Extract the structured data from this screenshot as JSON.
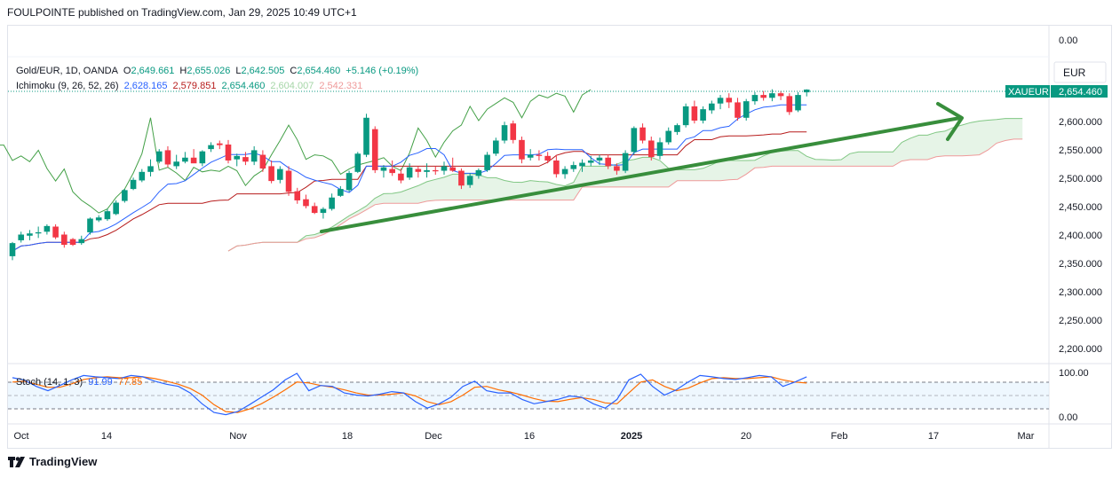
{
  "header": {
    "published": "FOULPOINTE published on TradingView.com, Jan 29, 2025 10:49 UTC+1"
  },
  "legend": {
    "symbol_line": {
      "symbol": "Gold/EUR, 1D, OANDA",
      "o_label": "O",
      "o": "2,649.661",
      "h_label": "H",
      "h": "2,655.026",
      "l_label": "L",
      "l": "2,642.505",
      "c_label": "C",
      "c": "2,654.460",
      "change": "+5.146 (+0.19%)"
    },
    "ichimoku": {
      "name": "Ichimoku (9, 26, 52, 26)",
      "values": [
        "2,628.165",
        "2,579.851",
        "2,654.460",
        "2,604.007",
        "2,542.331"
      ],
      "colors": [
        "#2962ff",
        "#b71c1c",
        "#089981",
        "#a5d6a7",
        "#ef9a9a"
      ]
    },
    "stoch": {
      "name": "Stoch (14, 1, 3)",
      "k": "91.99",
      "d": "77.85",
      "k_color": "#2962ff",
      "d_color": "#ff6d00"
    }
  },
  "currency": "EUR",
  "price_tag": {
    "symbol": "XAUEUR",
    "price": "2,654.460"
  },
  "footer": {
    "brand": "TradingView"
  },
  "colors": {
    "up": "#089981",
    "down": "#f23645",
    "tenkan": "#2962ff",
    "kijun": "#b71c1c",
    "span_a": "#43a047",
    "span_b": "#ef9a9a",
    "cloud": "#c8e6c9",
    "chikou": "#43a047",
    "trend_arrow": "#388e3c"
  },
  "chart_data": [
    {
      "type": "candlestick",
      "y_ticks": [
        "0.00",
        "2,600.000",
        "2,550.000",
        "2,500.000",
        "2,450.000",
        "2,400.000",
        "2,350.000",
        "2,300.000",
        "2,250.000",
        "2,200.000"
      ],
      "x_ticks": [
        "Oct",
        "14",
        "Nov",
        "18",
        "Dec",
        "16",
        "2025",
        "20",
        "Feb",
        "17",
        "Mar"
      ],
      "ylim": [
        2180,
        2680
      ],
      "candles": [
        {
          "o": 2362,
          "h": 2387,
          "l": 2355,
          "c": 2385
        },
        {
          "o": 2390,
          "h": 2405,
          "l": 2386,
          "c": 2400
        },
        {
          "o": 2398,
          "h": 2408,
          "l": 2390,
          "c": 2402
        },
        {
          "o": 2402,
          "h": 2414,
          "l": 2394,
          "c": 2404
        },
        {
          "o": 2405,
          "h": 2418,
          "l": 2400,
          "c": 2415
        },
        {
          "o": 2414,
          "h": 2418,
          "l": 2392,
          "c": 2395
        },
        {
          "o": 2400,
          "h": 2405,
          "l": 2377,
          "c": 2382
        },
        {
          "o": 2392,
          "h": 2394,
          "l": 2380,
          "c": 2382
        },
        {
          "o": 2385,
          "h": 2398,
          "l": 2382,
          "c": 2392
        },
        {
          "o": 2404,
          "h": 2430,
          "l": 2400,
          "c": 2428
        },
        {
          "o": 2425,
          "h": 2434,
          "l": 2422,
          "c": 2430
        },
        {
          "o": 2427,
          "h": 2445,
          "l": 2424,
          "c": 2441
        },
        {
          "o": 2436,
          "h": 2460,
          "l": 2434,
          "c": 2456
        },
        {
          "o": 2459,
          "h": 2480,
          "l": 2456,
          "c": 2478
        },
        {
          "o": 2480,
          "h": 2500,
          "l": 2478,
          "c": 2496
        },
        {
          "o": 2495,
          "h": 2515,
          "l": 2492,
          "c": 2510
        },
        {
          "o": 2510,
          "h": 2532,
          "l": 2502,
          "c": 2520
        },
        {
          "o": 2528,
          "h": 2550,
          "l": 2525,
          "c": 2546
        },
        {
          "o": 2548,
          "h": 2555,
          "l": 2518,
          "c": 2523
        },
        {
          "o": 2520,
          "h": 2540,
          "l": 2515,
          "c": 2528
        },
        {
          "o": 2528,
          "h": 2545,
          "l": 2525,
          "c": 2535
        },
        {
          "o": 2535,
          "h": 2550,
          "l": 2528,
          "c": 2525
        },
        {
          "o": 2525,
          "h": 2548,
          "l": 2520,
          "c": 2546
        },
        {
          "o": 2550,
          "h": 2562,
          "l": 2545,
          "c": 2557
        },
        {
          "o": 2560,
          "h": 2565,
          "l": 2550,
          "c": 2557
        },
        {
          "o": 2558,
          "h": 2566,
          "l": 2525,
          "c": 2530
        },
        {
          "o": 2532,
          "h": 2542,
          "l": 2520,
          "c": 2538
        },
        {
          "o": 2536,
          "h": 2545,
          "l": 2522,
          "c": 2528
        },
        {
          "o": 2528,
          "h": 2555,
          "l": 2522,
          "c": 2548
        },
        {
          "o": 2540,
          "h": 2548,
          "l": 2510,
          "c": 2516
        },
        {
          "o": 2520,
          "h": 2530,
          "l": 2490,
          "c": 2494
        },
        {
          "o": 2496,
          "h": 2520,
          "l": 2490,
          "c": 2515
        },
        {
          "o": 2512,
          "h": 2520,
          "l": 2468,
          "c": 2475
        },
        {
          "o": 2476,
          "h": 2482,
          "l": 2454,
          "c": 2460
        },
        {
          "o": 2462,
          "h": 2470,
          "l": 2446,
          "c": 2450
        },
        {
          "o": 2450,
          "h": 2456,
          "l": 2436,
          "c": 2438
        },
        {
          "o": 2438,
          "h": 2448,
          "l": 2428,
          "c": 2445
        },
        {
          "o": 2445,
          "h": 2472,
          "l": 2442,
          "c": 2465
        },
        {
          "o": 2468,
          "h": 2485,
          "l": 2466,
          "c": 2480
        },
        {
          "o": 2478,
          "h": 2512,
          "l": 2475,
          "c": 2508
        },
        {
          "o": 2510,
          "h": 2545,
          "l": 2508,
          "c": 2542
        },
        {
          "o": 2540,
          "h": 2612,
          "l": 2536,
          "c": 2605
        },
        {
          "o": 2585,
          "h": 2590,
          "l": 2508,
          "c": 2513
        },
        {
          "o": 2512,
          "h": 2522,
          "l": 2500,
          "c": 2518
        },
        {
          "o": 2515,
          "h": 2530,
          "l": 2503,
          "c": 2508
        },
        {
          "o": 2507,
          "h": 2516,
          "l": 2490,
          "c": 2495
        },
        {
          "o": 2500,
          "h": 2525,
          "l": 2496,
          "c": 2518
        },
        {
          "o": 2515,
          "h": 2520,
          "l": 2500,
          "c": 2510
        },
        {
          "o": 2510,
          "h": 2525,
          "l": 2500,
          "c": 2513
        },
        {
          "o": 2513,
          "h": 2520,
          "l": 2505,
          "c": 2511
        },
        {
          "o": 2512,
          "h": 2528,
          "l": 2505,
          "c": 2520
        },
        {
          "o": 2518,
          "h": 2535,
          "l": 2510,
          "c": 2512
        },
        {
          "o": 2512,
          "h": 2516,
          "l": 2480,
          "c": 2486
        },
        {
          "o": 2487,
          "h": 2508,
          "l": 2482,
          "c": 2503
        },
        {
          "o": 2503,
          "h": 2516,
          "l": 2498,
          "c": 2513
        },
        {
          "o": 2513,
          "h": 2545,
          "l": 2510,
          "c": 2540
        },
        {
          "o": 2542,
          "h": 2570,
          "l": 2538,
          "c": 2565
        },
        {
          "o": 2565,
          "h": 2598,
          "l": 2560,
          "c": 2592
        },
        {
          "o": 2595,
          "h": 2600,
          "l": 2560,
          "c": 2566
        },
        {
          "o": 2566,
          "h": 2572,
          "l": 2525,
          "c": 2532
        },
        {
          "o": 2535,
          "h": 2550,
          "l": 2530,
          "c": 2540
        },
        {
          "o": 2540,
          "h": 2548,
          "l": 2530,
          "c": 2538
        },
        {
          "o": 2538,
          "h": 2545,
          "l": 2525,
          "c": 2530
        },
        {
          "o": 2530,
          "h": 2540,
          "l": 2500,
          "c": 2506
        },
        {
          "o": 2506,
          "h": 2520,
          "l": 2498,
          "c": 2515
        },
        {
          "o": 2515,
          "h": 2528,
          "l": 2510,
          "c": 2522
        },
        {
          "o": 2520,
          "h": 2532,
          "l": 2510,
          "c": 2526
        },
        {
          "o": 2526,
          "h": 2538,
          "l": 2520,
          "c": 2530
        },
        {
          "o": 2530,
          "h": 2540,
          "l": 2522,
          "c": 2535
        },
        {
          "o": 2535,
          "h": 2540,
          "l": 2515,
          "c": 2520
        },
        {
          "o": 2520,
          "h": 2525,
          "l": 2505,
          "c": 2512
        },
        {
          "o": 2512,
          "h": 2548,
          "l": 2508,
          "c": 2543
        },
        {
          "o": 2545,
          "h": 2590,
          "l": 2540,
          "c": 2587
        },
        {
          "o": 2588,
          "h": 2595,
          "l": 2560,
          "c": 2565
        },
        {
          "o": 2565,
          "h": 2572,
          "l": 2530,
          "c": 2536
        },
        {
          "o": 2538,
          "h": 2570,
          "l": 2532,
          "c": 2562
        },
        {
          "o": 2562,
          "h": 2588,
          "l": 2558,
          "c": 2582
        },
        {
          "o": 2580,
          "h": 2595,
          "l": 2575,
          "c": 2592
        },
        {
          "o": 2592,
          "h": 2630,
          "l": 2588,
          "c": 2625
        },
        {
          "o": 2625,
          "h": 2635,
          "l": 2595,
          "c": 2600
        },
        {
          "o": 2600,
          "h": 2625,
          "l": 2595,
          "c": 2620
        },
        {
          "o": 2618,
          "h": 2635,
          "l": 2612,
          "c": 2630
        },
        {
          "o": 2630,
          "h": 2645,
          "l": 2620,
          "c": 2640
        },
        {
          "o": 2640,
          "h": 2648,
          "l": 2622,
          "c": 2632
        },
        {
          "o": 2632,
          "h": 2640,
          "l": 2600,
          "c": 2605
        },
        {
          "o": 2605,
          "h": 2638,
          "l": 2600,
          "c": 2634
        },
        {
          "o": 2634,
          "h": 2650,
          "l": 2628,
          "c": 2645
        },
        {
          "o": 2645,
          "h": 2652,
          "l": 2635,
          "c": 2640
        },
        {
          "o": 2640,
          "h": 2655,
          "l": 2634,
          "c": 2648
        },
        {
          "o": 2648,
          "h": 2652,
          "l": 2636,
          "c": 2643
        },
        {
          "o": 2643,
          "h": 2648,
          "l": 2610,
          "c": 2615
        },
        {
          "o": 2618,
          "h": 2650,
          "l": 2615,
          "c": 2645
        },
        {
          "o": 2649.661,
          "h": 2655.026,
          "l": 2642.505,
          "c": 2654.46
        }
      ]
    },
    {
      "type": "line",
      "name": "Stoch (14, 1, 3)",
      "y_ticks": [
        "100.00",
        "0.00"
      ],
      "ylim": [
        0,
        100
      ],
      "bands": [
        80,
        20
      ],
      "series": [
        {
          "name": "91.99",
          "values": [
            90,
            85,
            70,
            60,
            72,
            85,
            95,
            92,
            90,
            88,
            95,
            92,
            82,
            75,
            70,
            55,
            30,
            10,
            5,
            12,
            28,
            45,
            62,
            85,
            100,
            60,
            72,
            70,
            55,
            50,
            48,
            52,
            58,
            55,
            35,
            20,
            30,
            45,
            70,
            82,
            60,
            55,
            55,
            40,
            30,
            35,
            40,
            48,
            45,
            30,
            20,
            40,
            85,
            98,
            70,
            50,
            62,
            80,
            95,
            92,
            88,
            86,
            90,
            95,
            92,
            70,
            80,
            91.99
          ]
        },
        {
          "name": "77.85",
          "values": [
            80,
            82,
            75,
            68,
            68,
            76,
            86,
            90,
            92,
            90,
            90,
            92,
            88,
            82,
            75,
            65,
            50,
            28,
            12,
            10,
            18,
            30,
            45,
            62,
            80,
            78,
            72,
            68,
            62,
            55,
            50,
            50,
            52,
            55,
            48,
            35,
            28,
            35,
            50,
            68,
            70,
            62,
            57,
            50,
            42,
            36,
            35,
            40,
            44,
            40,
            32,
            30,
            55,
            80,
            85,
            70,
            60,
            66,
            78,
            88,
            90,
            88,
            88,
            90,
            92,
            85,
            80,
            77.85
          ]
        }
      ]
    }
  ]
}
